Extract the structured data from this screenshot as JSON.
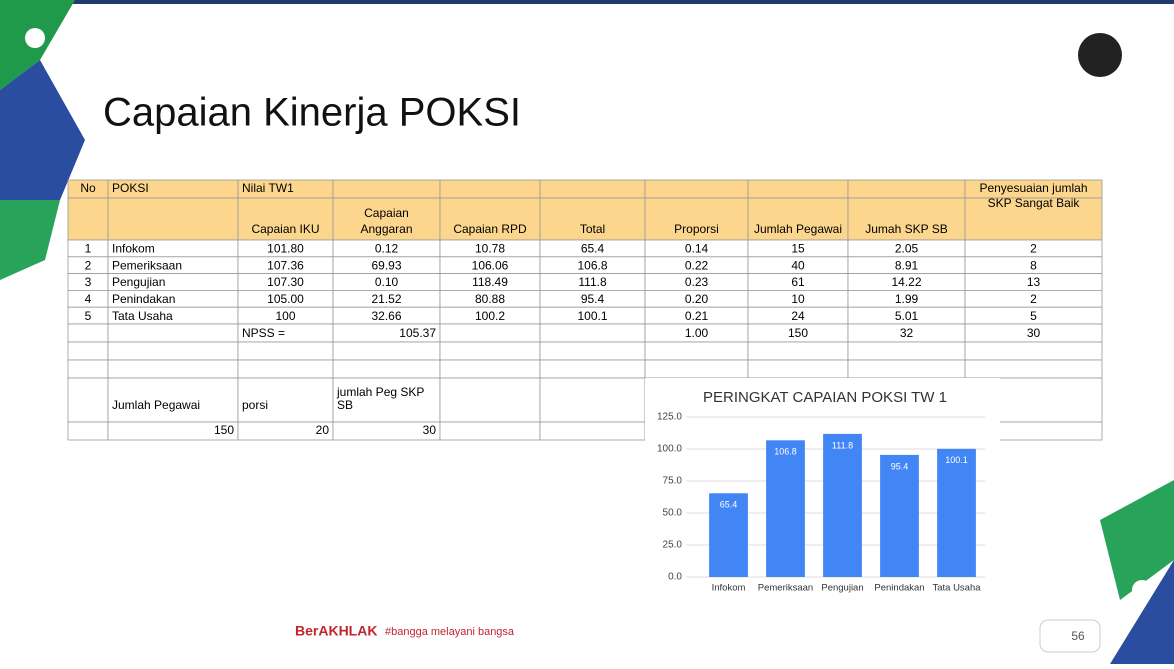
{
  "slide_title": "Capaian Kinerja POKSI",
  "table": {
    "header_row1": [
      "No",
      "POKSI",
      "Nilai TW1",
      "Penyesuaian jumlah SKP Sangat Baik"
    ],
    "header_row2": [
      "Capaian IKU",
      "Capaian Anggaran",
      "Capaian RPD",
      "Total",
      "Proporsi",
      "Jumlah Pegawai",
      "Jumah SKP SB"
    ],
    "rows": [
      [
        "1",
        "Infokom",
        "101.80",
        "0.12",
        "10.78",
        "65.4",
        "0.14",
        "15",
        "2.05",
        "2"
      ],
      [
        "2",
        "Pemeriksaan",
        "107.36",
        "69.93",
        "106.06",
        "106.8",
        "0.22",
        "40",
        "8.91",
        "8"
      ],
      [
        "3",
        "Pengujian",
        "107.30",
        "0.10",
        "118.49",
        "111.8",
        "0.23",
        "61",
        "14.22",
        "13"
      ],
      [
        "4",
        "Penindakan",
        "105.00",
        "21.52",
        "80.88",
        "95.4",
        "0.20",
        "10",
        "1.99",
        "2"
      ],
      [
        "5",
        "Tata Usaha",
        "100",
        "32.66",
        "100.2",
        "100.1",
        "0.21",
        "24",
        "5.01",
        "5"
      ]
    ],
    "total_row": [
      "NPSS =",
      "105.37",
      "1.00",
      "150",
      "32",
      "30"
    ]
  },
  "summary": {
    "headers": [
      "Jumlah Pegawai",
      "porsi",
      "jumlah Peg SKP SB"
    ],
    "values": [
      "150",
      "20",
      "30"
    ]
  },
  "chart_data": {
    "type": "bar",
    "title": "PERINGKAT CAPAIAN POKSI TW 1",
    "categories": [
      "Infokom",
      "Pemeriksaan",
      "Pengujian",
      "Penindakan",
      "Tata Usaha"
    ],
    "values": [
      65.4,
      106.8,
      111.8,
      95.4,
      100.1
    ],
    "color": "#4285f4",
    "ylim": [
      0,
      125
    ],
    "yticks": [
      {
        "value": 0,
        "label": "0.0"
      },
      {
        "value": 25,
        "label": "25.0"
      },
      {
        "value": 50,
        "label": "50.0"
      },
      {
        "value": 75,
        "label": "75.0"
      },
      {
        "value": 100,
        "label": "100.0"
      },
      {
        "value": 125,
        "label": "125.0"
      }
    ],
    "grid": true
  },
  "footer": {
    "logo_text": "BerAKHLAK",
    "slogan": "#bangga melayani bangsa",
    "page_number": "56"
  }
}
